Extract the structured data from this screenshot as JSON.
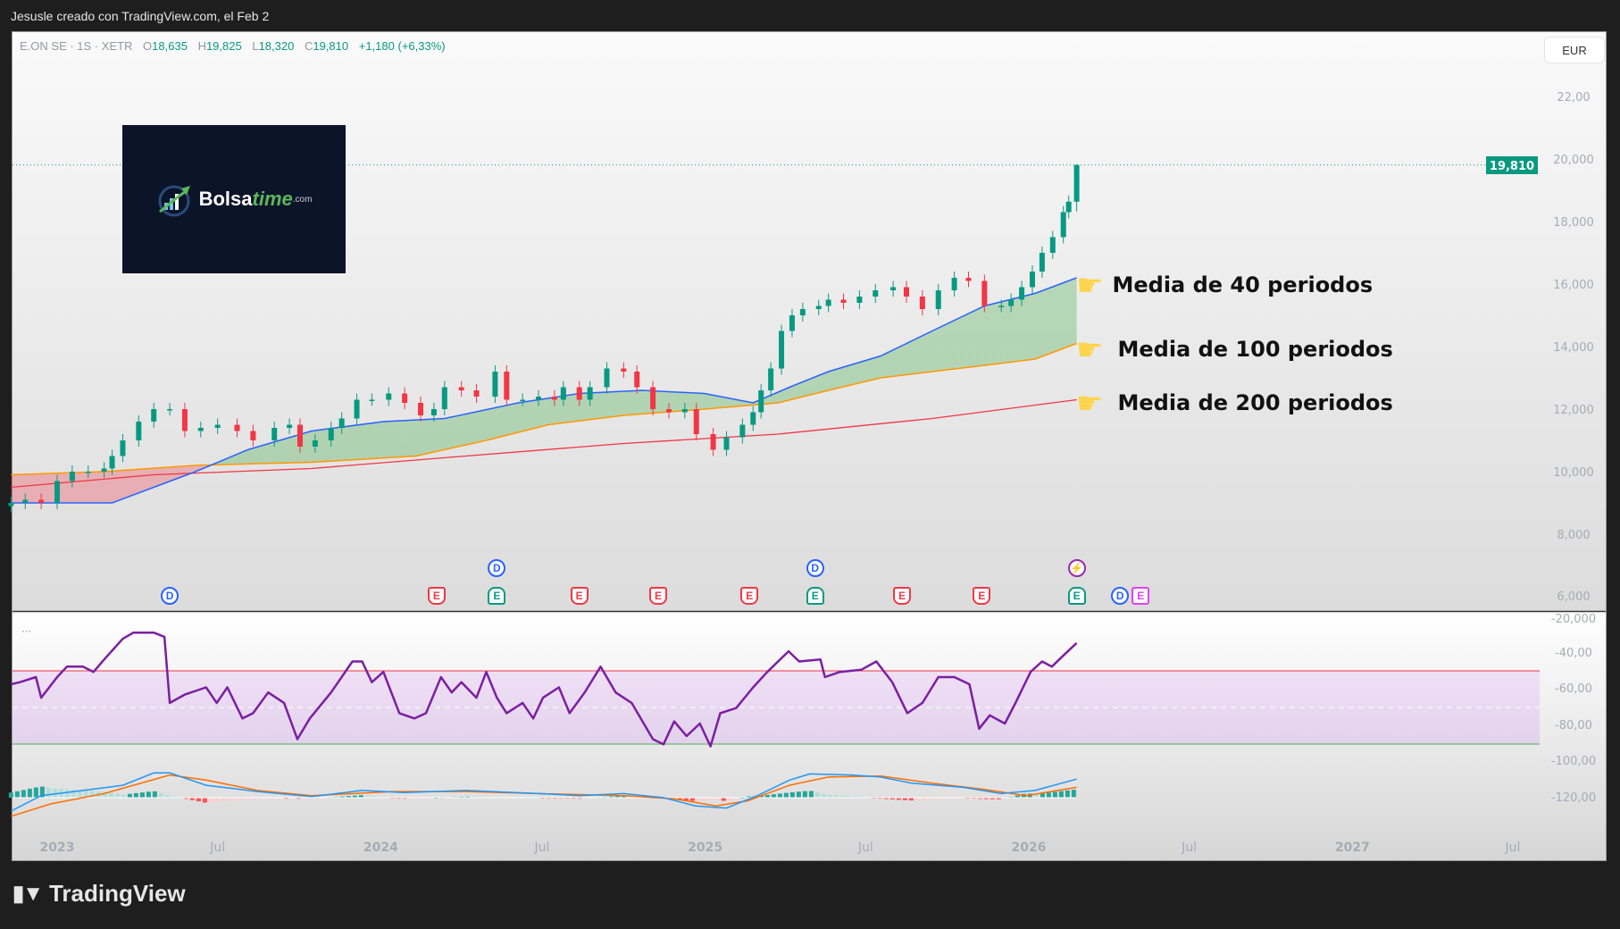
{
  "caption": "Jesusle creado con TradingView.com, el Feb 2",
  "legend": {
    "symbol": "E.ON SE · 1S · XETR",
    "o_label": "O",
    "open": "18,635",
    "h_label": "H",
    "high": "19,825",
    "l_label": "L",
    "low": "18,320",
    "c_label": "C",
    "close": "19,810",
    "change": "+1,180 (+6,33%)"
  },
  "currency": "EUR",
  "last_price_label": "19,810",
  "logo": {
    "brand": "Bolsa",
    "brand2": "time",
    "suffix": ".com"
  },
  "annotations": [
    "Media de 40 periodos",
    "Media de 100 periodos",
    "Media de 200 periodos"
  ],
  "footer": {
    "brand": "TradingView"
  },
  "indicator_menu": "···",
  "colors": {
    "up": "#089981",
    "down": "#f23645",
    "ma40": "#2962ff",
    "ma100": "#ff9800",
    "ma200": "#f23645",
    "rsi": "#7b1fa2",
    "macd": "#2196f3",
    "signal": "#ff6d00"
  },
  "chart_data": {
    "type": "candlestick",
    "price_axis_ticks": [
      "22,00",
      "20,000",
      "18,000",
      "16,000",
      "14,000",
      "12,000",
      "10,000",
      "8,000",
      "6,000"
    ],
    "price_tick_values": [
      22,
      20,
      18,
      16,
      14,
      12,
      10,
      8,
      6
    ],
    "indicator_axis_ticks": [
      "-20,000",
      "-40,00",
      "-60,00",
      "-80,00",
      "-100,00",
      "-120,00"
    ],
    "time_axis_ticks": [
      {
        "label": "2023",
        "date": "2023-01-01",
        "year": true
      },
      {
        "label": "Jul",
        "date": "2023-07-01"
      },
      {
        "label": "2024",
        "date": "2024-01-01",
        "year": true
      },
      {
        "label": "Jul",
        "date": "2024-07-01"
      },
      {
        "label": "2025",
        "date": "2025-01-01",
        "year": true
      },
      {
        "label": "Jul",
        "date": "2025-07-01"
      },
      {
        "label": "2026",
        "date": "2026-01-01",
        "year": true
      },
      {
        "label": "Jul",
        "date": "2026-07-01"
      },
      {
        "label": "2027",
        "date": "2027-01-01",
        "year": true
      },
      {
        "label": "Jul",
        "date": "2027-07-01"
      }
    ],
    "last_candle": {
      "open": 18.635,
      "high": 19.825,
      "low": 18.32,
      "close": 19.81
    },
    "closes": [
      [
        "2022-11-10",
        9.0
      ],
      [
        "2022-11-26",
        9.1
      ],
      [
        "2022-12-14",
        9.0
      ],
      [
        "2023-01-01",
        9.7
      ],
      [
        "2023-01-18",
        10.0
      ],
      [
        "2023-02-05",
        10.0
      ],
      [
        "2023-02-23",
        10.1
      ],
      [
        "2023-03-04",
        10.5
      ],
      [
        "2023-03-16",
        11.0
      ],
      [
        "2023-04-03",
        11.6
      ],
      [
        "2023-04-20",
        12.0
      ],
      [
        "2023-05-08",
        12.0
      ],
      [
        "2023-05-25",
        11.3
      ],
      [
        "2023-06-12",
        11.4
      ],
      [
        "2023-07-01",
        11.5
      ],
      [
        "2023-07-23",
        11.3
      ],
      [
        "2023-08-10",
        11.0
      ],
      [
        "2023-09-03",
        11.4
      ],
      [
        "2023-09-20",
        11.5
      ],
      [
        "2023-10-02",
        10.8
      ],
      [
        "2023-10-19",
        11.0
      ],
      [
        "2023-11-06",
        11.4
      ],
      [
        "2023-11-18",
        11.7
      ],
      [
        "2023-12-05",
        12.3
      ],
      [
        "2023-12-22",
        12.3
      ],
      [
        "2024-01-10",
        12.5
      ],
      [
        "2024-01-28",
        12.2
      ],
      [
        "2024-02-15",
        11.8
      ],
      [
        "2024-03-01",
        12.0
      ],
      [
        "2024-03-13",
        12.7
      ],
      [
        "2024-04-01",
        12.6
      ],
      [
        "2024-04-18",
        12.4
      ],
      [
        "2024-05-09",
        13.2
      ],
      [
        "2024-05-22",
        12.3
      ],
      [
        "2024-06-09",
        12.3
      ],
      [
        "2024-06-27",
        12.4
      ],
      [
        "2024-07-15",
        12.3
      ],
      [
        "2024-07-25",
        12.7
      ],
      [
        "2024-08-12",
        12.3
      ],
      [
        "2024-08-24",
        12.7
      ],
      [
        "2024-09-12",
        13.3
      ],
      [
        "2024-10-01",
        13.2
      ],
      [
        "2024-10-16",
        12.7
      ],
      [
        "2024-11-03",
        12.0
      ],
      [
        "2024-11-21",
        11.9
      ],
      [
        "2024-12-09",
        12.0
      ],
      [
        "2024-12-22",
        11.2
      ],
      [
        "2025-01-10",
        10.7
      ],
      [
        "2025-01-25",
        11.1
      ],
      [
        "2025-02-12",
        11.5
      ],
      [
        "2025-02-24",
        11.9
      ],
      [
        "2025-03-05",
        12.6
      ],
      [
        "2025-03-16",
        13.3
      ],
      [
        "2025-03-28",
        14.5
      ],
      [
        "2025-04-09",
        15.0
      ],
      [
        "2025-04-21",
        15.2
      ],
      [
        "2025-05-09",
        15.3
      ],
      [
        "2025-05-20",
        15.5
      ],
      [
        "2025-06-06",
        15.4
      ],
      [
        "2025-06-24",
        15.6
      ],
      [
        "2025-07-12",
        15.8
      ],
      [
        "2025-08-01",
        15.9
      ],
      [
        "2025-08-16",
        15.6
      ],
      [
        "2025-09-03",
        15.2
      ],
      [
        "2025-09-21",
        15.8
      ],
      [
        "2025-10-09",
        16.2
      ],
      [
        "2025-10-25",
        16.1
      ],
      [
        "2025-11-12",
        15.3
      ],
      [
        "2025-12-01",
        15.3
      ],
      [
        "2025-12-12",
        15.5
      ],
      [
        "2025-12-24",
        15.9
      ],
      [
        "2026-01-05",
        16.4
      ],
      [
        "2026-01-16",
        17.0
      ],
      [
        "2026-01-28",
        17.5
      ],
      [
        "2026-02-09",
        18.3
      ],
      [
        "2026-02-15",
        18.635
      ],
      [
        "2026-02-24",
        19.81
      ]
    ],
    "ma40": [
      [
        "2022-11-10",
        9.0
      ],
      [
        "2023-03-04",
        9.0
      ],
      [
        "2023-06-06",
        10.0
      ],
      [
        "2023-08-04",
        10.7
      ],
      [
        "2023-10-15",
        11.3
      ],
      [
        "2024-01-04",
        11.6
      ],
      [
        "2024-03-13",
        11.7
      ],
      [
        "2024-06-04",
        12.2
      ],
      [
        "2024-08-12",
        12.5
      ],
      [
        "2024-10-22",
        12.6
      ],
      [
        "2024-12-31",
        12.5
      ],
      [
        "2025-02-24",
        12.2
      ],
      [
        "2025-04-06",
        12.7
      ],
      [
        "2025-05-20",
        13.2
      ],
      [
        "2025-07-18",
        13.7
      ],
      [
        "2025-09-14",
        14.5
      ],
      [
        "2025-11-12",
        15.3
      ],
      [
        "2026-01-08",
        15.7
      ],
      [
        "2026-02-24",
        16.2
      ]
    ],
    "ma100": [
      [
        "2022-11-10",
        9.9
      ],
      [
        "2023-02-23",
        10.0
      ],
      [
        "2023-06-06",
        10.2
      ],
      [
        "2023-10-15",
        10.3
      ],
      [
        "2024-02-10",
        10.5
      ],
      [
        "2024-04-29",
        11.0
      ],
      [
        "2024-07-08",
        11.5
      ],
      [
        "2024-10-01",
        11.8
      ],
      [
        "2024-12-31",
        12.0
      ],
      [
        "2025-03-24",
        12.2
      ],
      [
        "2025-05-20",
        12.6
      ],
      [
        "2025-07-18",
        13.0
      ],
      [
        "2025-09-14",
        13.2
      ],
      [
        "2025-11-12",
        13.4
      ],
      [
        "2026-01-08",
        13.6
      ],
      [
        "2026-02-24",
        14.1
      ]
    ],
    "ma200": [
      [
        "2022-11-10",
        9.5
      ],
      [
        "2023-04-20",
        9.9
      ],
      [
        "2023-10-15",
        10.1
      ],
      [
        "2024-04-06",
        10.5
      ],
      [
        "2024-10-01",
        10.9
      ],
      [
        "2025-03-24",
        11.2
      ],
      [
        "2025-09-14",
        11.7
      ],
      [
        "2026-02-24",
        12.3
      ]
    ],
    "rsi": {
      "upper": 70,
      "middle": 50,
      "lower": 30,
      "values": [
        [
          "2022-11-10",
          62.7
        ],
        [
          "2022-11-20",
          63.8
        ],
        [
          "2022-12-08",
          66.6
        ],
        [
          "2022-12-14",
          55.3
        ],
        [
          "2023-01-01",
          66.6
        ],
        [
          "2023-01-12",
          72.3
        ],
        [
          "2023-01-30",
          72.3
        ],
        [
          "2023-02-11",
          69.4
        ],
        [
          "2023-02-23",
          76.2
        ],
        [
          "2023-03-16",
          87.5
        ],
        [
          "2023-03-28",
          90.9
        ],
        [
          "2023-04-20",
          90.9
        ],
        [
          "2023-05-02",
          88.6
        ],
        [
          "2023-05-08",
          52.5
        ],
        [
          "2023-05-25",
          57.0
        ],
        [
          "2023-06-18",
          61.0
        ],
        [
          "2023-06-30",
          52.5
        ],
        [
          "2023-07-12",
          61.0
        ],
        [
          "2023-07-29",
          44.0
        ],
        [
          "2023-08-10",
          46.9
        ],
        [
          "2023-08-27",
          58.2
        ],
        [
          "2023-09-14",
          52.5
        ],
        [
          "2023-09-29",
          32.7
        ],
        [
          "2023-10-13",
          44.0
        ],
        [
          "2023-11-06",
          58.2
        ],
        [
          "2023-11-30",
          75.1
        ],
        [
          "2023-12-11",
          75.1
        ],
        [
          "2023-12-22",
          63.8
        ],
        [
          "2024-01-04",
          69.4
        ],
        [
          "2024-01-22",
          46.9
        ],
        [
          "2024-02-08",
          44.0
        ],
        [
          "2024-02-21",
          46.9
        ],
        [
          "2024-03-09",
          66.6
        ],
        [
          "2024-03-21",
          58.2
        ],
        [
          "2024-04-01",
          63.8
        ],
        [
          "2024-04-18",
          55.3
        ],
        [
          "2024-04-29",
          69.4
        ],
        [
          "2024-05-11",
          55.3
        ],
        [
          "2024-05-22",
          46.9
        ],
        [
          "2024-06-09",
          52.5
        ],
        [
          "2024-06-21",
          44.0
        ],
        [
          "2024-07-02",
          55.3
        ],
        [
          "2024-07-20",
          61.0
        ],
        [
          "2024-08-01",
          46.9
        ],
        [
          "2024-08-18",
          58.2
        ],
        [
          "2024-09-05",
          72.3
        ],
        [
          "2024-09-22",
          58.2
        ],
        [
          "2024-10-10",
          52.5
        ],
        [
          "2024-11-03",
          32.7
        ],
        [
          "2024-11-15",
          29.9
        ],
        [
          "2024-11-27",
          42.4
        ],
        [
          "2024-12-11",
          34.4
        ],
        [
          "2024-12-26",
          41.2
        ],
        [
          "2025-01-07",
          28.8
        ],
        [
          "2025-01-18",
          46.9
        ],
        [
          "2025-02-05",
          49.7
        ],
        [
          "2025-02-24",
          61.0
        ],
        [
          "2025-03-12",
          69.4
        ],
        [
          "2025-04-05",
          80.7
        ],
        [
          "2025-04-17",
          75.1
        ],
        [
          "2025-05-11",
          76.2
        ],
        [
          "2025-05-16",
          66.6
        ],
        [
          "2025-06-02",
          69.4
        ],
        [
          "2025-06-26",
          70.6
        ],
        [
          "2025-07-13",
          75.1
        ],
        [
          "2025-07-31",
          63.8
        ],
        [
          "2025-08-17",
          46.9
        ],
        [
          "2025-09-03",
          52.5
        ],
        [
          "2025-09-21",
          66.6
        ],
        [
          "2025-10-09",
          66.6
        ],
        [
          "2025-10-26",
          62.7
        ],
        [
          "2025-11-06",
          38.4
        ],
        [
          "2025-11-18",
          45.7
        ],
        [
          "2025-12-05",
          41.2
        ],
        [
          "2025-12-17",
          52.5
        ],
        [
          "2026-01-03",
          69.4
        ],
        [
          "2026-01-16",
          75.1
        ],
        [
          "2026-01-27",
          72.3
        ],
        [
          "2026-02-08",
          77.9
        ],
        [
          "2026-02-24",
          85.2
        ]
      ]
    },
    "macd": [
      [
        "2022-11-10",
        -0.52
      ],
      [
        "2022-12-14",
        0.08
      ],
      [
        "2023-01-30",
        0.28
      ],
      [
        "2023-03-16",
        0.48
      ],
      [
        "2023-04-20",
        0.96
      ],
      [
        "2023-05-08",
        0.96
      ],
      [
        "2023-06-18",
        0.48
      ],
      [
        "2023-08-15",
        0.24
      ],
      [
        "2023-10-15",
        0.04
      ],
      [
        "2023-12-11",
        0.28
      ],
      [
        "2024-01-27",
        0.2
      ],
      [
        "2024-04-06",
        0.28
      ],
      [
        "2024-06-27",
        0.16
      ],
      [
        "2024-08-12",
        0.08
      ],
      [
        "2024-10-01",
        0.16
      ],
      [
        "2024-11-15",
        0.0
      ],
      [
        "2024-12-21",
        -0.32
      ],
      [
        "2025-01-25",
        -0.4
      ],
      [
        "2025-03-01",
        0.08
      ],
      [
        "2025-04-06",
        0.68
      ],
      [
        "2025-04-29",
        0.92
      ],
      [
        "2025-06-15",
        0.88
      ],
      [
        "2025-07-18",
        0.8
      ],
      [
        "2025-08-22",
        0.56
      ],
      [
        "2025-10-19",
        0.4
      ],
      [
        "2025-12-01",
        0.16
      ],
      [
        "2026-01-08",
        0.28
      ],
      [
        "2026-02-24",
        0.72
      ]
    ],
    "signal": [
      [
        "2022-11-10",
        -0.72
      ],
      [
        "2022-12-25",
        -0.24
      ],
      [
        "2023-02-23",
        0.16
      ],
      [
        "2023-05-08",
        0.88
      ],
      [
        "2023-06-18",
        0.68
      ],
      [
        "2023-08-15",
        0.28
      ],
      [
        "2023-10-15",
        0.08
      ],
      [
        "2024-01-15",
        0.24
      ],
      [
        "2024-04-06",
        0.24
      ],
      [
        "2024-06-27",
        0.16
      ],
      [
        "2024-10-01",
        0.08
      ],
      [
        "2024-11-27",
        -0.04
      ],
      [
        "2025-01-13",
        -0.32
      ],
      [
        "2025-02-18",
        -0.12
      ],
      [
        "2025-04-06",
        0.48
      ],
      [
        "2025-05-20",
        0.8
      ],
      [
        "2025-07-18",
        0.84
      ],
      [
        "2025-09-14",
        0.56
      ],
      [
        "2025-11-12",
        0.32
      ],
      [
        "2025-12-29",
        0.08
      ],
      [
        "2026-02-24",
        0.4
      ]
    ]
  },
  "events": [
    {
      "type": "D",
      "date": "2023-05-08",
      "row": "low"
    },
    {
      "type": "E",
      "tone": "red",
      "date": "2024-03-04",
      "row": "low"
    },
    {
      "type": "D",
      "date": "2024-05-11",
      "row": "high"
    },
    {
      "type": "E",
      "tone": "green",
      "date": "2024-05-11",
      "row": "low"
    },
    {
      "type": "E",
      "tone": "red",
      "date": "2024-08-12",
      "row": "low"
    },
    {
      "type": "E",
      "tone": "red",
      "date": "2024-11-09",
      "row": "low"
    },
    {
      "type": "E",
      "tone": "red",
      "date": "2025-02-20",
      "row": "low"
    },
    {
      "type": "D",
      "date": "2025-05-05",
      "row": "high"
    },
    {
      "type": "E",
      "tone": "green",
      "date": "2025-05-05",
      "row": "low"
    },
    {
      "type": "E",
      "tone": "red",
      "date": "2025-08-11",
      "row": "low"
    },
    {
      "type": "E",
      "tone": "red",
      "date": "2025-11-09",
      "row": "low"
    },
    {
      "type": "⚡",
      "tone": "bolt",
      "date": "2026-02-24",
      "row": "high"
    },
    {
      "type": "E",
      "tone": "green",
      "date": "2026-02-24",
      "row": "low"
    },
    {
      "type": "D",
      "date": "2026-04-14",
      "row": "low"
    },
    {
      "type": "E",
      "tone": "magenta",
      "date": "2026-05-04",
      "row": "low"
    }
  ]
}
